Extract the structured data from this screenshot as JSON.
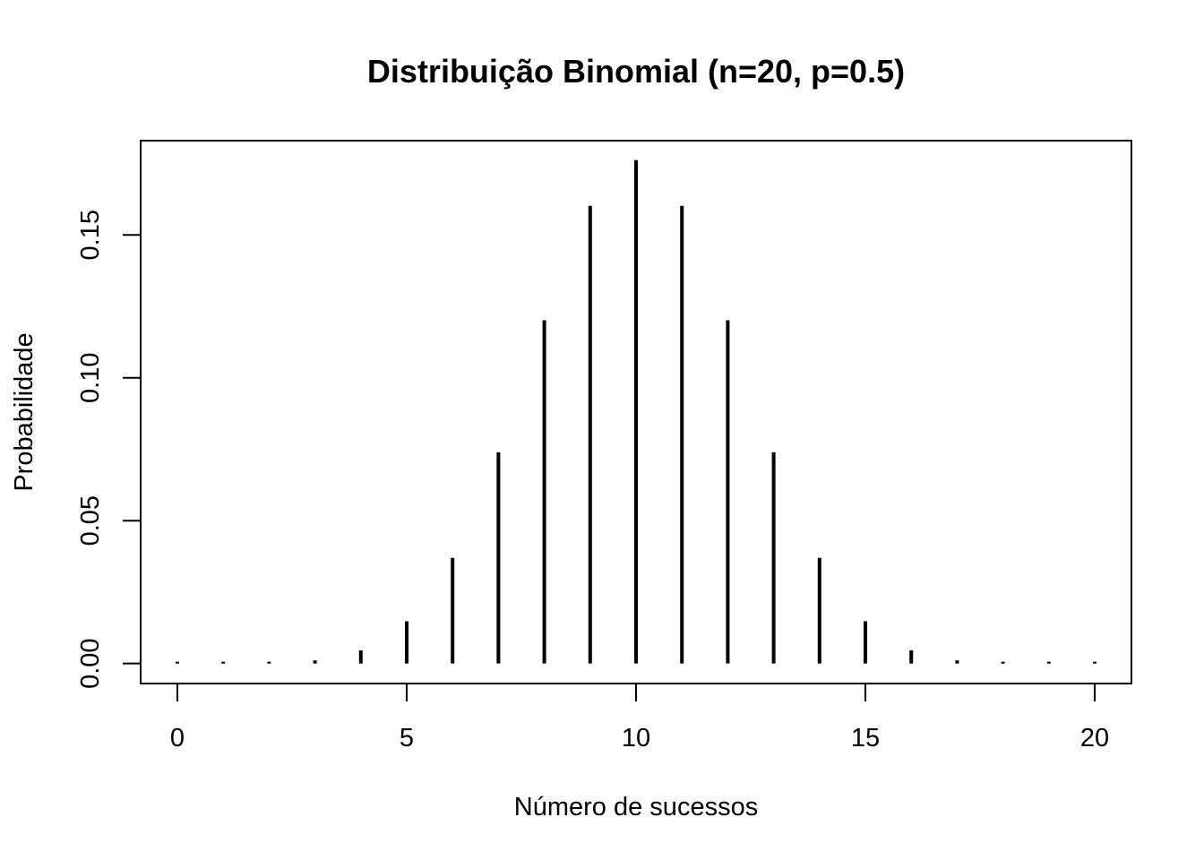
{
  "chart_data": {
    "type": "bar",
    "style": "vertical-lines",
    "title": "Distribuição Binomial (n=20, p=0.5)",
    "xlabel": "Número de sucessos",
    "ylabel": "Probabilidade",
    "x": [
      0,
      1,
      2,
      3,
      4,
      5,
      6,
      7,
      8,
      9,
      10,
      11,
      12,
      13,
      14,
      15,
      16,
      17,
      18,
      19,
      20
    ],
    "values": [
      1e-06,
      2e-05,
      0.00018,
      0.00109,
      0.00462,
      0.01479,
      0.03696,
      0.07393,
      0.12013,
      0.16018,
      0.1762,
      0.16018,
      0.12013,
      0.07393,
      0.03696,
      0.01479,
      0.00462,
      0.00109,
      0.00018,
      2e-05,
      1e-06
    ],
    "xlim": [
      -0.8,
      20.8
    ],
    "ylim": [
      -0.007,
      0.183
    ],
    "x_ticks": [
      0,
      5,
      10,
      15,
      20
    ],
    "x_tick_labels": [
      "0",
      "5",
      "10",
      "15",
      "20"
    ],
    "y_ticks": [
      0,
      0.05,
      0.1,
      0.15
    ],
    "y_tick_labels": [
      "0.00",
      "0.05",
      "0.10",
      "0.15"
    ],
    "grid": false,
    "legend": "none",
    "line_color": "#000000"
  }
}
